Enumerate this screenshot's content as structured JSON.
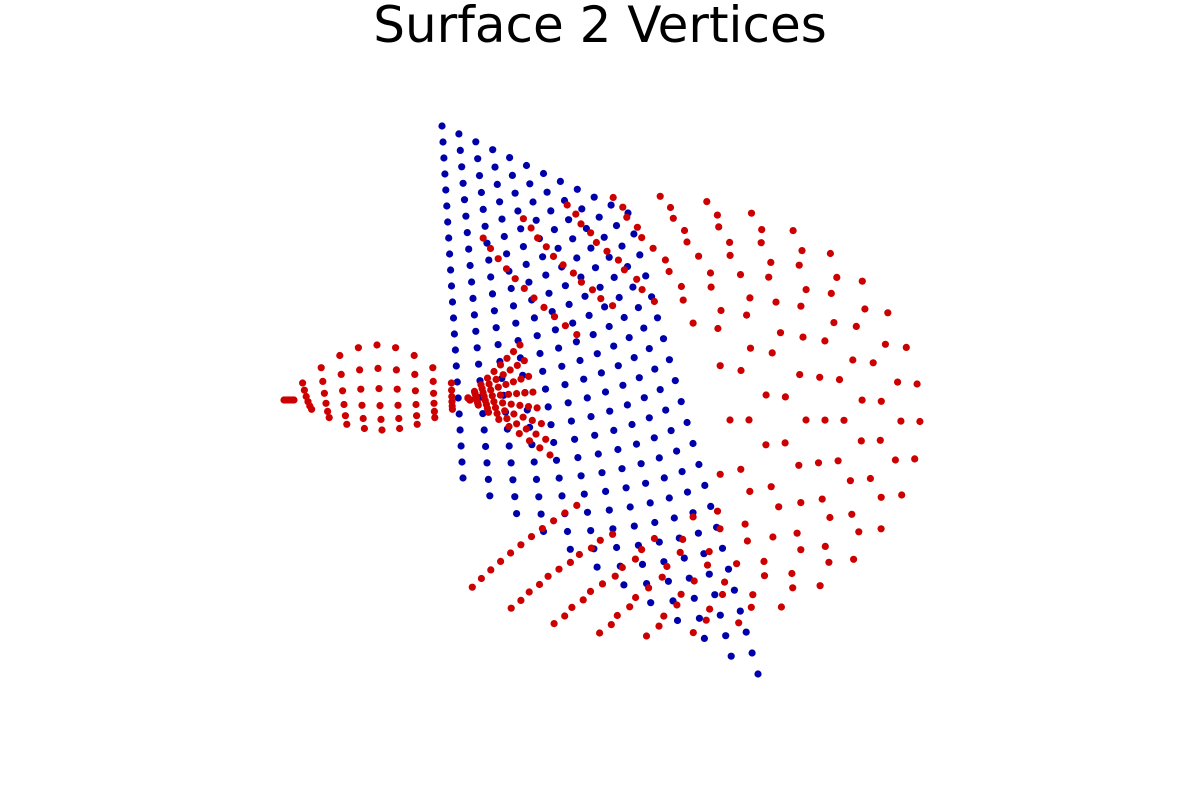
{
  "title": "Surface 2 Vertices",
  "colors": {
    "background": "#ffffff",
    "title": "#000000",
    "plane_points": "#0000aa",
    "surface_points": "#cc0000"
  },
  "point_sets": [
    {
      "name": "planar-grid",
      "color_key": "plane_points"
    },
    {
      "name": "curved-surface",
      "color_key": "surface_points"
    }
  ]
}
